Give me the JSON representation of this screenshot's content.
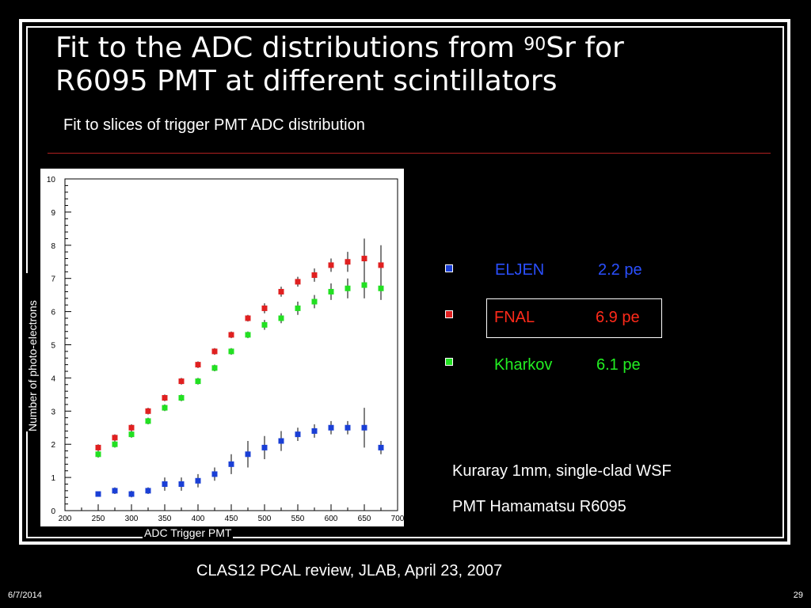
{
  "slide": {
    "title_line1_pre": "Fit to the ADC distributions from ",
    "title_sup": "90",
    "title_line1_post": "Sr for",
    "title_line2": "R6095  PMT at different scintillators",
    "subtitle": "Fit to slices of trigger PMT ADC distribution",
    "note1": "Kuraray 1mm, single-clad WSF",
    "note2": "PMT  Hamamatsu R6095",
    "footer": "CLAS12  PCAL review, JLAB, April 23, 2007",
    "date": "6/7/2014",
    "page": "29"
  },
  "colors": {
    "rule": "#b02020",
    "eljen": "#1a3fd6",
    "fnal": "#e02020",
    "kharkov": "#22e022"
  },
  "legend": [
    {
      "name": "ELJEN",
      "value": "2.2 pe",
      "color": "#1a3fd6",
      "text_color": "#2a4fff"
    },
    {
      "name": "FNAL",
      "value": "6.9 pe",
      "color": "#e02020",
      "text_color": "#ff2a1a"
    },
    {
      "name": "Kharkov",
      "value": "6.1 pe",
      "color": "#22e022",
      "text_color": "#22ee22"
    }
  ],
  "chart_data": {
    "type": "scatter",
    "xlabel": "ADC Trigger PMT",
    "ylabel": "Number of photo-electrons",
    "xlim": [
      200,
      700
    ],
    "ylim": [
      0,
      10
    ],
    "x_ticks": [
      "200",
      "250",
      "300",
      "350",
      "400",
      "450",
      "500",
      "550",
      "600",
      "650",
      "700"
    ],
    "y_ticks": [
      "0",
      "1",
      "2",
      "3",
      "4",
      "5",
      "6",
      "7",
      "8",
      "9",
      "10"
    ],
    "grid": false,
    "x": [
      250,
      275,
      300,
      325,
      350,
      375,
      400,
      425,
      450,
      475,
      500,
      525,
      550,
      575,
      600,
      625,
      650,
      675
    ],
    "series": [
      {
        "name": "FNAL",
        "color": "#e02020",
        "values": [
          1.9,
          2.2,
          2.5,
          3.0,
          3.4,
          3.9,
          4.4,
          4.8,
          5.3,
          5.8,
          6.1,
          6.6,
          6.9,
          7.1,
          7.4,
          7.5,
          7.6,
          7.4
        ],
        "errors": [
          0.1,
          0.1,
          0.1,
          0.1,
          0.1,
          0.1,
          0.1,
          0.1,
          0.1,
          0.1,
          0.15,
          0.15,
          0.15,
          0.2,
          0.2,
          0.3,
          0.6,
          0.6
        ]
      },
      {
        "name": "Kharkov",
        "color": "#22e022",
        "values": [
          1.7,
          2.0,
          2.3,
          2.7,
          3.1,
          3.4,
          3.9,
          4.3,
          4.8,
          5.3,
          5.6,
          5.8,
          6.1,
          6.3,
          6.6,
          6.7,
          6.8,
          6.7
        ],
        "errors": [
          0.1,
          0.1,
          0.1,
          0.1,
          0.1,
          0.1,
          0.1,
          0.1,
          0.1,
          0.1,
          0.15,
          0.15,
          0.2,
          0.2,
          0.25,
          0.3,
          0.4,
          0.35
        ]
      },
      {
        "name": "ELJEN",
        "color": "#1a3fd6",
        "values": [
          0.5,
          0.6,
          0.5,
          0.6,
          0.8,
          0.8,
          0.9,
          1.1,
          1.4,
          1.7,
          1.9,
          2.1,
          2.3,
          2.4,
          2.5,
          2.5,
          2.5,
          1.9
        ],
        "errors": [
          0.05,
          0.1,
          0.1,
          0.1,
          0.2,
          0.2,
          0.2,
          0.2,
          0.3,
          0.4,
          0.35,
          0.3,
          0.2,
          0.2,
          0.2,
          0.2,
          0.6,
          0.2
        ]
      }
    ]
  }
}
